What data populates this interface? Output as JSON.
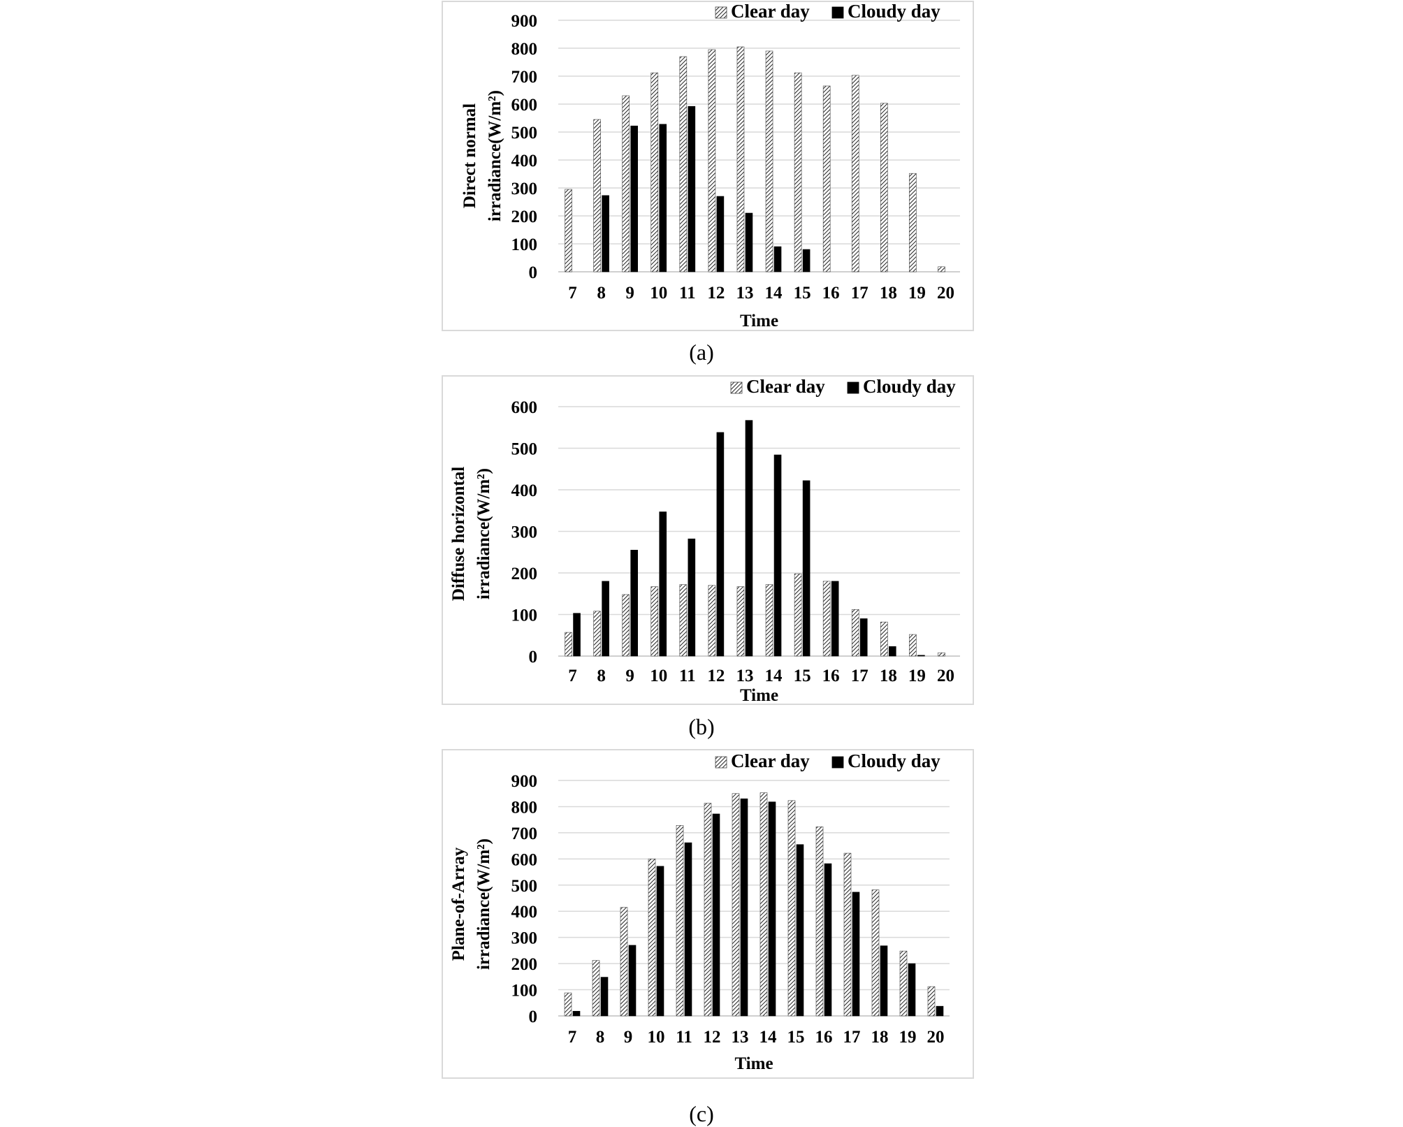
{
  "panels": [
    {
      "caption": "(a)",
      "chart_data": {
        "type": "bar",
        "title": "",
        "xlabel": "Time",
        "ylabel_lines": [
          "Direct normal",
          "irradiance(W/m²)"
        ],
        "ylim": [
          0,
          900
        ],
        "yticks": [
          0,
          100,
          200,
          300,
          400,
          500,
          600,
          700,
          800,
          900
        ],
        "categories": [
          "7",
          "8",
          "9",
          "10",
          "11",
          "12",
          "13",
          "14",
          "15",
          "16",
          "17",
          "18",
          "19",
          "20"
        ],
        "series": [
          {
            "name": "Clear day",
            "values": [
              295,
              545,
              630,
              712,
              770,
              795,
              805,
              790,
              712,
              665,
              703,
              603,
              352,
              18
            ]
          },
          {
            "name": "Cloudy day",
            "values": [
              0,
              273,
              522,
              528,
              592,
              270,
              210,
              90,
              80,
              0,
              0,
              0,
              0,
              0
            ]
          }
        ],
        "grid": true,
        "legend": "top-right"
      }
    },
    {
      "caption": "(b)",
      "chart_data": {
        "type": "bar",
        "title": "",
        "xlabel": "Time",
        "ylabel_lines": [
          "Diffuse  horizontal",
          "irradiance(W/m²)"
        ],
        "ylim": [
          0,
          600
        ],
        "yticks": [
          0,
          100,
          200,
          300,
          400,
          500,
          600
        ],
        "categories": [
          "7",
          "8",
          "9",
          "10",
          "11",
          "12",
          "13",
          "14",
          "15",
          "16",
          "17",
          "18",
          "19",
          "20"
        ],
        "series": [
          {
            "name": "Clear day",
            "values": [
              57,
              108,
              148,
              167,
              172,
              170,
              167,
              172,
              198,
              180,
              112,
              82,
              52,
              8
            ]
          },
          {
            "name": "Cloudy day",
            "values": [
              103,
              180,
              255,
              347,
              282,
              538,
              567,
              484,
              422,
              180,
              90,
              23,
              2,
              0
            ]
          }
        ],
        "grid": true,
        "legend": "top-right"
      }
    },
    {
      "caption": "(c)",
      "chart_data": {
        "type": "bar",
        "title": "",
        "xlabel": "Time",
        "ylabel_lines": [
          "Plane-of-Array",
          "irradiance(W/m²)"
        ],
        "ylim": [
          0,
          900
        ],
        "yticks": [
          0,
          100,
          200,
          300,
          400,
          500,
          600,
          700,
          800,
          900
        ],
        "categories": [
          "7",
          "8",
          "9",
          "10",
          "11",
          "12",
          "13",
          "14",
          "15",
          "16",
          "17",
          "18",
          "19",
          "20"
        ],
        "series": [
          {
            "name": "Clear day",
            "values": [
              88,
              212,
              415,
              600,
              728,
              813,
              850,
              853,
              823,
              723,
              622,
              482,
              248,
              112
            ]
          },
          {
            "name": "Cloudy day",
            "values": [
              18,
              148,
              270,
              572,
              662,
              772,
              830,
              818,
              655,
              582,
              473,
              268,
              200,
              37
            ]
          }
        ],
        "grid": true,
        "legend": "top-right"
      }
    }
  ]
}
